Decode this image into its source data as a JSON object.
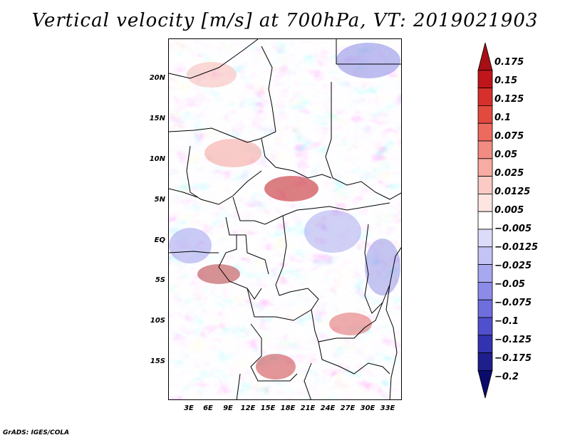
{
  "title": "Vertical velocity [m/s] at 700hPa, VT: 2019021903",
  "footer": "GrADS: IGES/COLA",
  "map": {
    "region": "Central Africa",
    "lat_labels": [
      "20N",
      "15N",
      "10N",
      "5N",
      "EQ",
      "5S",
      "10S",
      "15S"
    ],
    "lon_labels": [
      "3E",
      "6E",
      "9E",
      "12E",
      "15E",
      "18E",
      "21E",
      "24E",
      "27E",
      "30E",
      "33E"
    ]
  },
  "colorbar": {
    "labels": [
      "0.175",
      "0.15",
      "0.125",
      "0.1",
      "0.075",
      "0.05",
      "0.025",
      "0.0125",
      "0.005",
      "−0.005",
      "−0.0125",
      "−0.025",
      "−0.05",
      "−0.075",
      "−0.1",
      "−0.125",
      "−0.175",
      "−0.2"
    ],
    "colors": [
      "#a50f15",
      "#c0161b",
      "#d6302c",
      "#e34a3e",
      "#ec6b5e",
      "#f28c82",
      "#f7aba3",
      "#fbcac5",
      "#fde5e2",
      "#ffffff",
      "#dcdcfa",
      "#c3c3f5",
      "#a8a8f0",
      "#8c8ce8",
      "#6e6edd",
      "#5050cc",
      "#3333b0",
      "#1e1e8c",
      "#0b0b6b"
    ]
  }
}
